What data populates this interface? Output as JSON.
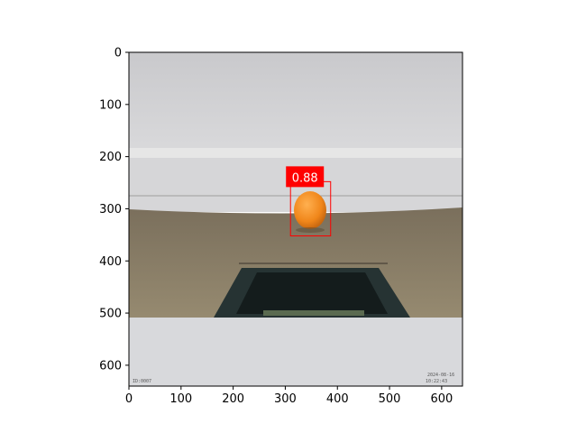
{
  "plot": {
    "x_ticks": [
      "0",
      "100",
      "200",
      "300",
      "400",
      "500",
      "600"
    ],
    "y_ticks": [
      "0",
      "100",
      "200",
      "300",
      "400",
      "500",
      "600"
    ],
    "x_tick_values": [
      0,
      100,
      200,
      300,
      400,
      500,
      600
    ],
    "y_tick_values": [
      0,
      100,
      200,
      300,
      400,
      500,
      600
    ],
    "xlim": [
      0,
      640
    ],
    "ylim": [
      640,
      0
    ]
  },
  "detection": {
    "label": "0.88",
    "color": "#ff0000",
    "box": {
      "x_min": 310,
      "y_min": 248,
      "x_max": 387,
      "y_max": 352
    }
  },
  "scene": {
    "wall_color": "#d4d4d6",
    "floor_color": "#8c7f66",
    "ball_color": "#f28a1c",
    "pit_color": "#1f2c2c",
    "stamp_left": "ID:0007",
    "stamp_right_1": "2024-08-16",
    "stamp_right_2": "10:22:43"
  }
}
